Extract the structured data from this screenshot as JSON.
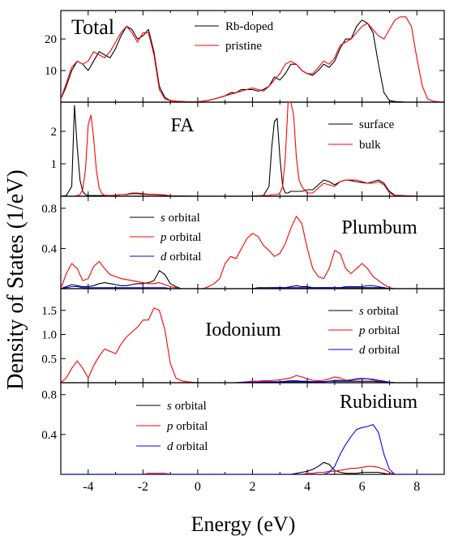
{
  "figure": {
    "ylabel": "Density of States (1/eV)",
    "xlabel": "Energy (eV)",
    "x_ticks": [
      "-4",
      "-2",
      "0",
      "2",
      "4",
      "6",
      "8"
    ],
    "x_range": [
      -5,
      9
    ],
    "colors": {
      "black": "#000000",
      "red": "#ff0000",
      "blue": "#0000ff"
    }
  },
  "chart_data": [
    {
      "type": "line",
      "panel_title": "Total",
      "ylim": [
        0,
        29
      ],
      "yticks": [
        10,
        20
      ],
      "legend_position": "top-right",
      "x": [
        -5.0,
        -4.8,
        -4.6,
        -4.4,
        -4.2,
        -4.0,
        -3.8,
        -3.6,
        -3.4,
        -3.2,
        -3.0,
        -2.8,
        -2.6,
        -2.4,
        -2.2,
        -2.0,
        -1.8,
        -1.6,
        -1.4,
        -1.2,
        -1.0,
        -0.8,
        -0.6,
        -0.4,
        -0.2,
        0.0,
        0.2,
        0.4,
        0.6,
        0.8,
        1.0,
        1.2,
        1.4,
        1.6,
        1.8,
        2.0,
        2.2,
        2.4,
        2.6,
        2.8,
        3.0,
        3.2,
        3.4,
        3.6,
        3.8,
        4.0,
        4.2,
        4.4,
        4.6,
        4.8,
        5.0,
        5.2,
        5.4,
        5.6,
        5.8,
        6.0,
        6.2,
        6.4,
        6.6,
        6.8,
        7.0,
        7.2,
        7.4,
        7.6,
        7.8,
        8.0,
        8.2,
        8.4,
        8.6,
        8.8,
        9.0
      ],
      "series": [
        {
          "name": "Rb-doped",
          "color": "#000000",
          "values": [
            1,
            5,
            10,
            13,
            12,
            10,
            13,
            16,
            15,
            14,
            17,
            21,
            24,
            23,
            20,
            21,
            23,
            16,
            5,
            1.5,
            0.5,
            0.3,
            0.2,
            0.1,
            0.1,
            0.1,
            0.3,
            0.6,
            1,
            1.5,
            2,
            3,
            3,
            4,
            4,
            4,
            3.5,
            4,
            5,
            8,
            7,
            9,
            12,
            12,
            10,
            9,
            8.5,
            10,
            12,
            11,
            13,
            17,
            20,
            20,
            24,
            26,
            25,
            22,
            12,
            3,
            0.5,
            0.2,
            0.1,
            0,
            0,
            0,
            0,
            0,
            0,
            0,
            0
          ]
        },
        {
          "name": "pristine",
          "color": "#ff0000",
          "values": [
            1,
            6,
            11,
            13,
            12,
            13,
            16,
            15,
            14,
            16,
            19,
            22,
            24,
            22,
            19,
            22,
            22,
            15,
            4,
            1,
            0.5,
            0.3,
            0.2,
            0.1,
            0.1,
            0.1,
            0.3,
            0.6,
            1,
            1.5,
            2,
            2.5,
            3,
            3.5,
            4,
            4.5,
            4,
            3.5,
            5,
            7,
            9,
            12,
            13,
            12,
            10,
            9,
            9,
            11,
            13,
            12,
            14,
            18,
            19,
            20,
            22,
            24,
            25,
            23,
            21,
            20,
            23,
            26,
            27,
            27,
            24,
            14,
            5,
            1,
            0.3,
            0.1,
            0
          ]
        }
      ]
    },
    {
      "type": "line",
      "panel_title": "FA",
      "ylim": [
        0,
        2.9
      ],
      "yticks": [
        1,
        2
      ],
      "legend_position": "top-right",
      "x": [
        -5.0,
        -4.8,
        -4.6,
        -4.5,
        -4.4,
        -4.3,
        -4.2,
        -4.1,
        -4.0,
        -3.9,
        -3.8,
        -3.7,
        -3.6,
        -3.5,
        -3.4,
        -3.2,
        -3.0,
        -2.8,
        -2.6,
        -2.4,
        -2.2,
        -2.0,
        -1.8,
        -1.6,
        -1.4,
        -1.2,
        -1.0,
        0.0,
        1.0,
        2.0,
        2.4,
        2.6,
        2.7,
        2.8,
        2.9,
        3.0,
        3.1,
        3.2,
        3.3,
        3.4,
        3.5,
        3.6,
        3.7,
        3.8,
        4.0,
        4.2,
        4.4,
        4.6,
        4.8,
        5.0,
        5.2,
        5.4,
        5.6,
        5.8,
        6.0,
        6.2,
        6.4,
        6.6,
        6.8,
        7.0,
        7.2,
        8.0,
        9.0
      ],
      "series": [
        {
          "name": "surface",
          "color": "#000000",
          "values": [
            0,
            0.02,
            0.3,
            2.8,
            1.5,
            0.5,
            0.15,
            0.05,
            0.02,
            0.02,
            0.02,
            0.02,
            0.02,
            0.02,
            0.02,
            0.02,
            0.03,
            0.05,
            0.05,
            0.08,
            0.08,
            0.06,
            0.05,
            0.05,
            0.04,
            0.03,
            0.01,
            0,
            0,
            0,
            0.02,
            0.3,
            1.5,
            2.3,
            2.4,
            1.2,
            0.3,
            0.1,
            0.1,
            0.15,
            0.15,
            0.15,
            0.15,
            0.15,
            0.2,
            0.2,
            0.35,
            0.5,
            0.45,
            0.35,
            0.45,
            0.5,
            0.48,
            0.45,
            0.42,
            0.4,
            0.45,
            0.5,
            0.4,
            0.15,
            0.03,
            0,
            0
          ]
        },
        {
          "name": "bulk",
          "color": "#ff0000",
          "values": [
            0,
            0,
            0,
            0,
            0.02,
            0.05,
            0.2,
            0.8,
            2.2,
            2.5,
            1.8,
            0.8,
            0.25,
            0.08,
            0.03,
            0.02,
            0.03,
            0.05,
            0.06,
            0.1,
            0.1,
            0.08,
            0.06,
            0.06,
            0.05,
            0.04,
            0.01,
            0,
            0,
            0,
            0.02,
            0.02,
            0.05,
            0.05,
            0.05,
            0.1,
            0.3,
            1.2,
            3.2,
            3.5,
            2.5,
            1.2,
            0.5,
            0.3,
            0.1,
            0.1,
            0.25,
            0.4,
            0.35,
            0.3,
            0.45,
            0.5,
            0.5,
            0.5,
            0.45,
            0.4,
            0.4,
            0.45,
            0.35,
            0.1,
            0.02,
            0,
            0
          ]
        }
      ]
    },
    {
      "type": "line",
      "panel_title": "Plumbum",
      "ylim": [
        0,
        0.92
      ],
      "yticks": [
        0.4,
        0.8
      ],
      "legend_position": "top-left",
      "x": [
        -5.0,
        -4.8,
        -4.6,
        -4.4,
        -4.2,
        -4.0,
        -3.8,
        -3.6,
        -3.4,
        -3.2,
        -3.0,
        -2.8,
        -2.6,
        -2.4,
        -2.2,
        -2.0,
        -1.8,
        -1.6,
        -1.4,
        -1.2,
        -1.0,
        -0.8,
        -0.6,
        -0.4,
        -0.2,
        0.0,
        0.2,
        0.4,
        0.6,
        0.8,
        1.0,
        1.2,
        1.4,
        1.6,
        1.8,
        2.0,
        2.2,
        2.4,
        2.6,
        2.8,
        3.0,
        3.2,
        3.4,
        3.6,
        3.8,
        4.0,
        4.2,
        4.4,
        4.6,
        4.8,
        5.0,
        5.2,
        5.4,
        5.6,
        5.8,
        6.0,
        6.2,
        6.4,
        6.6,
        6.8,
        7.0,
        7.2,
        8.0,
        9.0
      ],
      "series": [
        {
          "name": "s orbital",
          "color": "#000000",
          "values": [
            0,
            0.02,
            0.04,
            0.03,
            0.02,
            0.02,
            0.03,
            0.05,
            0.06,
            0.05,
            0.04,
            0.03,
            0.03,
            0.04,
            0.05,
            0.05,
            0.06,
            0.08,
            0.18,
            0.14,
            0.05,
            0.02,
            0,
            0,
            0,
            0,
            0,
            0,
            0,
            0,
            0,
            0,
            0,
            0,
            0,
            0,
            0.01,
            0.01,
            0.01,
            0.01,
            0.01,
            0.01,
            0.02,
            0.03,
            0.02,
            0.02,
            0.01,
            0.01,
            0.01,
            0.01,
            0.01,
            0.01,
            0.01,
            0.01,
            0.01,
            0.01,
            0.01,
            0.01,
            0.01,
            0.01,
            0,
            0,
            0,
            0
          ]
        },
        {
          "name": "p orbital",
          "color": "#ff0000",
          "values": [
            0,
            0.15,
            0.25,
            0.2,
            0.08,
            0.1,
            0.22,
            0.27,
            0.2,
            0.14,
            0.12,
            0.1,
            0.09,
            0.08,
            0.07,
            0.06,
            0.05,
            0.05,
            0.06,
            0.04,
            0.02,
            0.01,
            0,
            0,
            0,
            0,
            0,
            0.02,
            0.05,
            0.1,
            0.25,
            0.32,
            0.3,
            0.4,
            0.5,
            0.55,
            0.52,
            0.43,
            0.38,
            0.32,
            0.35,
            0.45,
            0.6,
            0.72,
            0.65,
            0.4,
            0.2,
            0.12,
            0.1,
            0.2,
            0.38,
            0.35,
            0.2,
            0.15,
            0.2,
            0.25,
            0.2,
            0.12,
            0.08,
            0.04,
            0.01,
            0,
            0,
            0
          ]
        },
        {
          "name": "d orbital",
          "color": "#0000ff",
          "values": [
            0,
            0.01,
            0.02,
            0.02,
            0.01,
            0.01,
            0.01,
            0.01,
            0.01,
            0.01,
            0.01,
            0.01,
            0.01,
            0.01,
            0.01,
            0.01,
            0.01,
            0.01,
            0.01,
            0.01,
            0,
            0,
            0,
            0,
            0,
            0,
            0,
            0,
            0,
            0,
            0,
            0,
            0,
            0,
            0,
            0,
            0,
            0,
            0.01,
            0.01,
            0.01,
            0.01,
            0.01,
            0.01,
            0.01,
            0.01,
            0.01,
            0.01,
            0.01,
            0.01,
            0.01,
            0.01,
            0.02,
            0.02,
            0.02,
            0.02,
            0.03,
            0.03,
            0.02,
            0.01,
            0,
            0,
            0,
            0
          ]
        }
      ]
    },
    {
      "type": "line",
      "panel_title": "Iodonium",
      "ylim": [
        0,
        1.95
      ],
      "yticks": [
        0.5,
        1.0,
        1.5
      ],
      "legend_position": "top-right",
      "x": [
        -5.0,
        -4.8,
        -4.6,
        -4.4,
        -4.2,
        -4.0,
        -3.8,
        -3.6,
        -3.4,
        -3.2,
        -3.0,
        -2.8,
        -2.6,
        -2.4,
        -2.2,
        -2.0,
        -1.8,
        -1.6,
        -1.4,
        -1.2,
        -1.0,
        -0.8,
        -0.6,
        -0.4,
        -0.2,
        0.0,
        0.2,
        0.4,
        0.6,
        0.8,
        1.0,
        1.2,
        1.4,
        1.6,
        1.8,
        2.0,
        2.2,
        2.4,
        2.6,
        2.8,
        3.0,
        3.2,
        3.4,
        3.6,
        3.8,
        4.0,
        4.2,
        4.4,
        4.6,
        4.8,
        5.0,
        5.2,
        5.4,
        5.6,
        5.8,
        6.0,
        6.2,
        6.4,
        6.6,
        6.8,
        7.0,
        7.2,
        8.0,
        9.0
      ],
      "series": [
        {
          "name": "s orbital",
          "color": "#000000",
          "values": [
            0,
            0,
            0,
            0,
            0,
            0,
            0,
            0,
            0,
            0,
            0,
            0,
            0,
            0,
            0,
            0,
            0,
            0,
            0,
            0,
            0,
            0,
            0,
            0,
            0,
            0,
            0,
            0,
            0,
            0,
            0,
            0,
            0,
            0,
            0.01,
            0.01,
            0.01,
            0.01,
            0.01,
            0.01,
            0.01,
            0.02,
            0.02,
            0.02,
            0.02,
            0.02,
            0.02,
            0.02,
            0.02,
            0.03,
            0.03,
            0.03,
            0.03,
            0.03,
            0.03,
            0.03,
            0.03,
            0.03,
            0.02,
            0.02,
            0.01,
            0,
            0,
            0
          ]
        },
        {
          "name": "p orbital",
          "color": "#ff0000",
          "values": [
            0,
            0.1,
            0.3,
            0.45,
            0.3,
            0.1,
            0.35,
            0.55,
            0.7,
            0.65,
            0.6,
            0.8,
            0.95,
            1.05,
            1.15,
            1.3,
            1.3,
            1.55,
            1.5,
            1.1,
            0.4,
            0.1,
            0.04,
            0.02,
            0.01,
            0,
            0,
            0,
            0,
            0,
            0,
            0,
            0,
            0.01,
            0.02,
            0.03,
            0.03,
            0.04,
            0.04,
            0.05,
            0.06,
            0.08,
            0.1,
            0.15,
            0.12,
            0.08,
            0.05,
            0.04,
            0.05,
            0.08,
            0.12,
            0.1,
            0.05,
            0.06,
            0.08,
            0.09,
            0.08,
            0.06,
            0.04,
            0.03,
            0.01,
            0,
            0,
            0
          ]
        },
        {
          "name": "d orbital",
          "color": "#0000ff",
          "values": [
            0,
            0,
            0,
            0,
            0,
            0,
            0,
            0,
            0,
            0,
            0,
            0,
            0,
            0,
            0,
            0,
            0,
            0,
            0,
            0,
            0,
            0,
            0,
            0,
            0,
            0,
            0,
            0,
            0,
            0,
            0,
            0,
            0,
            0.01,
            0.01,
            0.01,
            0.01,
            0.02,
            0.02,
            0.02,
            0.02,
            0.03,
            0.04,
            0.04,
            0.03,
            0.03,
            0.02,
            0.02,
            0.02,
            0.03,
            0.05,
            0.05,
            0.04,
            0.05,
            0.07,
            0.08,
            0.08,
            0.07,
            0.05,
            0.03,
            0.01,
            0,
            0,
            0
          ]
        }
      ]
    },
    {
      "type": "line",
      "panel_title": "Rubidium",
      "ylim": [
        0,
        0.92
      ],
      "yticks": [
        0.4,
        0.8
      ],
      "legend_position": "top-left",
      "x": [
        -5.0,
        -4.0,
        -3.0,
        -2.0,
        -1.8,
        -1.6,
        -1.4,
        -1.2,
        -1.0,
        0.0,
        1.0,
        2.0,
        3.0,
        3.4,
        3.6,
        3.8,
        4.0,
        4.2,
        4.4,
        4.6,
        4.8,
        5.0,
        5.2,
        5.4,
        5.6,
        5.8,
        6.0,
        6.2,
        6.4,
        6.6,
        6.8,
        7.0,
        7.2,
        8.0,
        9.0
      ],
      "series": [
        {
          "name": "s orbital",
          "color": "#000000",
          "values": [
            0,
            0,
            0,
            0,
            0,
            0,
            0,
            0,
            0,
            0,
            0,
            0,
            0,
            0,
            0.01,
            0.02,
            0.03,
            0.05,
            0.08,
            0.12,
            0.1,
            0.04,
            0.02,
            0.01,
            0.01,
            0.01,
            0.02,
            0.02,
            0.02,
            0.02,
            0.01,
            0,
            0,
            0,
            0
          ]
        },
        {
          "name": "p orbital",
          "color": "#ff0000",
          "values": [
            0,
            0,
            0,
            0,
            0.01,
            0.01,
            0.01,
            0.01,
            0,
            0,
            0,
            0,
            0,
            0,
            0,
            0,
            0.01,
            0.01,
            0.02,
            0.02,
            0.03,
            0.03,
            0.04,
            0.05,
            0.06,
            0.06,
            0.07,
            0.08,
            0.08,
            0.07,
            0.05,
            0.02,
            0,
            0,
            0
          ]
        },
        {
          "name": "d orbital",
          "color": "#0000ff",
          "values": [
            0,
            0,
            0,
            0,
            0,
            0,
            0,
            0,
            0,
            0,
            0,
            0,
            0,
            0,
            0,
            0,
            0,
            0,
            0,
            0,
            0.02,
            0.08,
            0.2,
            0.3,
            0.38,
            0.45,
            0.47,
            0.48,
            0.5,
            0.42,
            0.2,
            0.05,
            0,
            0,
            0
          ]
        }
      ]
    }
  ]
}
